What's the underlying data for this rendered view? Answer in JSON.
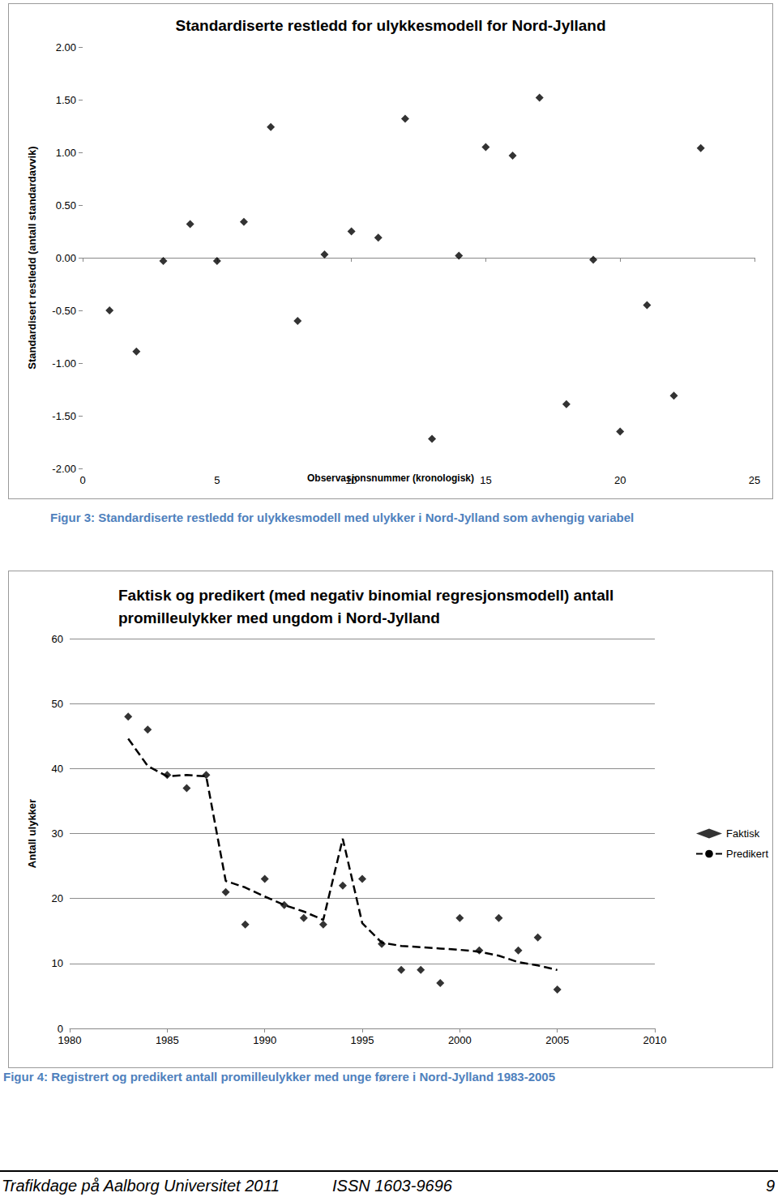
{
  "chart_data": [
    {
      "type": "scatter",
      "title": "Standardiserte restledd for ulykkesmodell for Nord-Jylland",
      "x_label": "Observasjonsnummer (kronologisk)",
      "y_label": "Standardisert restledd (antall standardavvik)",
      "x": [
        1,
        2,
        3,
        4,
        5,
        6,
        7,
        8,
        9,
        10,
        11,
        12,
        13,
        14,
        15,
        16,
        17,
        18,
        19,
        20,
        21,
        22,
        23
      ],
      "values": [
        -0.5,
        -0.89,
        -0.03,
        0.32,
        -0.03,
        0.34,
        1.24,
        -0.6,
        0.03,
        0.25,
        0.19,
        1.32,
        -1.72,
        0.02,
        1.05,
        0.97,
        1.52,
        -1.39,
        -0.02,
        -1.65,
        -0.45,
        -1.31,
        1.04
      ],
      "color": "#000000",
      "marker": "diamond",
      "xlim": [
        0,
        25
      ],
      "xticks": [
        0,
        5,
        10,
        15,
        20,
        25
      ],
      "ylim": [
        -2,
        2
      ],
      "yticks": [
        {
          "value": -2,
          "label": "-2.00"
        },
        {
          "value": -1.5,
          "label": "-1.50"
        },
        {
          "value": -1,
          "label": "-1.00"
        },
        {
          "value": -0.5,
          "label": "-0.50"
        },
        {
          "value": 0,
          "label": "0.00"
        },
        {
          "value": 0.5,
          "label": "0.50"
        },
        {
          "value": 1,
          "label": "1.00"
        },
        {
          "value": 1.5,
          "label": "1.50"
        },
        {
          "value": 2,
          "label": "2.00"
        }
      ],
      "grid": false,
      "caption": "Figur 3: Standardiserte restledd for ulykkesmodell med ulykker i Nord-Jylland som avhengig variabel"
    },
    {
      "type": "line",
      "title": "Faktisk og predikert (med negativ binomial regresjonsmodell) antall\npromilleulykker med ungdom i Nord-Jylland",
      "y_label": "Antall ulykker",
      "x": [
        1983,
        1984,
        1985,
        1986,
        1987,
        1988,
        1989,
        1990,
        1991,
        1992,
        1993,
        1994,
        1995,
        1996,
        1997,
        1998,
        1999,
        2000,
        2001,
        2002,
        2003,
        2004,
        2005
      ],
      "series": [
        {
          "name": "Faktisk",
          "type": "scatter",
          "color": "#000000",
          "marker": "diamond",
          "values": [
            48,
            46,
            39,
            37,
            39,
            21,
            16,
            23,
            19,
            17,
            16,
            22,
            23,
            13,
            9,
            9,
            7,
            17,
            12,
            17,
            12,
            14,
            6
          ]
        },
        {
          "name": "Predikert",
          "type": "line",
          "color": "#000000",
          "line_style": "dashed",
          "values": [
            44.6,
            40.4,
            38.8,
            39.0,
            38.8,
            22.7,
            21.7,
            20.3,
            19.0,
            18.0,
            16.7,
            29.2,
            16.2,
            13.2,
            12.7,
            12.5,
            12.3,
            12.1,
            11.8,
            11.2,
            10.2,
            9.7,
            9.0
          ]
        }
      ],
      "xlim": [
        1980,
        2010
      ],
      "xticks": [
        1980,
        1985,
        1990,
        1995,
        2000,
        2005,
        2010
      ],
      "ylim": [
        0,
        60
      ],
      "yticks": [
        0,
        10,
        20,
        30,
        40,
        50,
        60
      ],
      "grid": true,
      "legend": "right",
      "caption": "Figur 4: Registrert og predikert antall promilleulykker med unge førere i Nord-Jylland 1983-2005"
    }
  ],
  "footer": {
    "left": "Trafikdage på Aalborg Universitet 2011",
    "center": "ISSN 1603-9696",
    "page": 9
  }
}
